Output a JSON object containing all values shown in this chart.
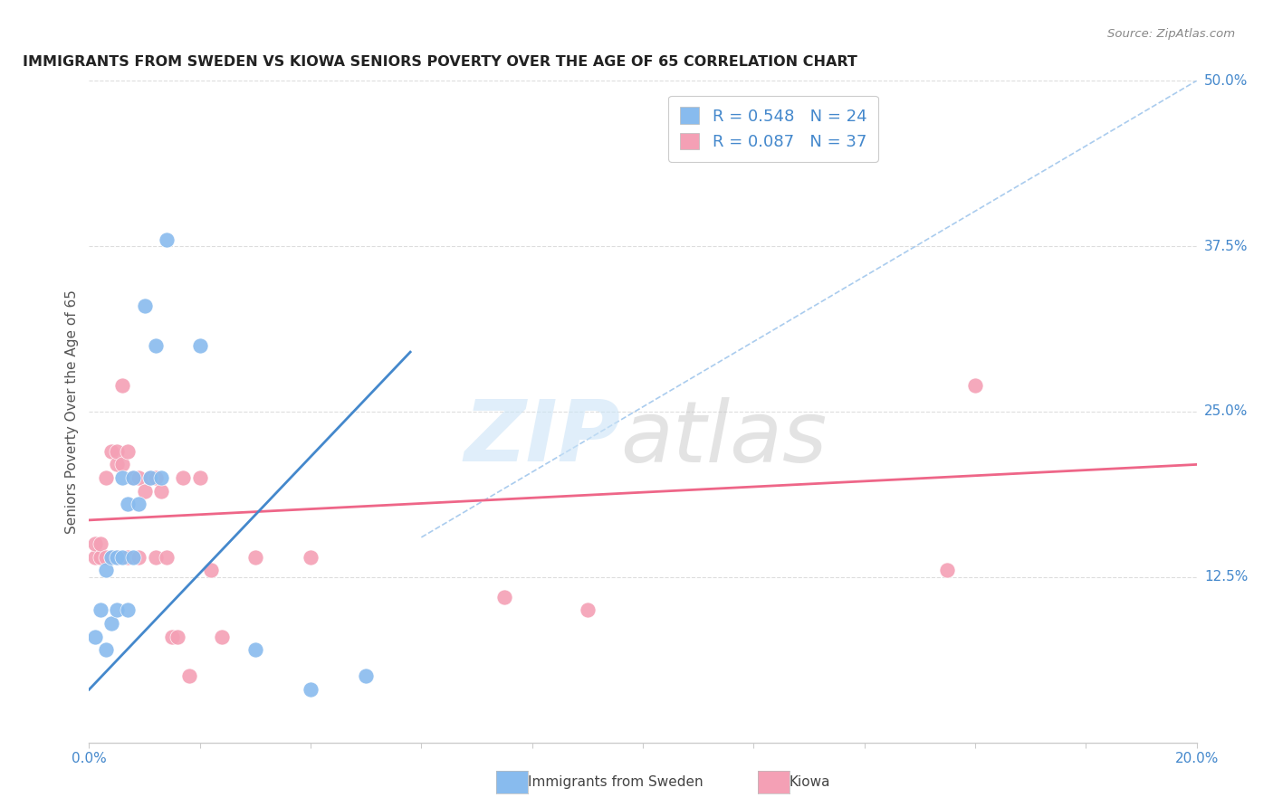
{
  "title": "IMMIGRANTS FROM SWEDEN VS KIOWA SENIORS POVERTY OVER THE AGE OF 65 CORRELATION CHART",
  "source": "Source: ZipAtlas.com",
  "ylabel": "Seniors Poverty Over the Age of 65",
  "xlim": [
    0.0,
    0.2
  ],
  "ylim": [
    0.0,
    0.5
  ],
  "sweden_color": "#88bbee",
  "kiowa_color": "#f4a0b5",
  "sweden_line_color": "#4488cc",
  "kiowa_line_color": "#ee6688",
  "trendline_color": "#aaccee",
  "sweden_scatter_x": [
    0.001,
    0.002,
    0.003,
    0.003,
    0.004,
    0.004,
    0.005,
    0.005,
    0.006,
    0.006,
    0.007,
    0.007,
    0.008,
    0.008,
    0.009,
    0.01,
    0.011,
    0.012,
    0.013,
    0.014,
    0.02,
    0.03,
    0.04,
    0.05
  ],
  "sweden_scatter_y": [
    0.08,
    0.1,
    0.13,
    0.07,
    0.14,
    0.09,
    0.14,
    0.1,
    0.14,
    0.2,
    0.18,
    0.1,
    0.2,
    0.14,
    0.18,
    0.33,
    0.2,
    0.3,
    0.2,
    0.38,
    0.3,
    0.07,
    0.04,
    0.05
  ],
  "kiowa_scatter_x": [
    0.001,
    0.001,
    0.002,
    0.002,
    0.003,
    0.003,
    0.004,
    0.004,
    0.005,
    0.005,
    0.005,
    0.006,
    0.006,
    0.007,
    0.007,
    0.008,
    0.009,
    0.009,
    0.01,
    0.011,
    0.012,
    0.012,
    0.013,
    0.014,
    0.015,
    0.016,
    0.017,
    0.018,
    0.02,
    0.022,
    0.024,
    0.03,
    0.04,
    0.075,
    0.09,
    0.155,
    0.16
  ],
  "kiowa_scatter_y": [
    0.14,
    0.15,
    0.14,
    0.15,
    0.2,
    0.14,
    0.22,
    0.14,
    0.21,
    0.14,
    0.22,
    0.21,
    0.27,
    0.22,
    0.14,
    0.2,
    0.14,
    0.2,
    0.19,
    0.2,
    0.2,
    0.14,
    0.19,
    0.14,
    0.08,
    0.08,
    0.2,
    0.05,
    0.2,
    0.13,
    0.08,
    0.14,
    0.14,
    0.11,
    0.1,
    0.13,
    0.27
  ],
  "sweden_line_x": [
    0.0,
    0.058
  ],
  "sweden_line_y": [
    0.04,
    0.295
  ],
  "kiowa_line_x": [
    0.0,
    0.2
  ],
  "kiowa_line_y": [
    0.168,
    0.21
  ],
  "diag_line_x": [
    0.06,
    0.2
  ],
  "diag_line_y": [
    0.155,
    0.5
  ]
}
